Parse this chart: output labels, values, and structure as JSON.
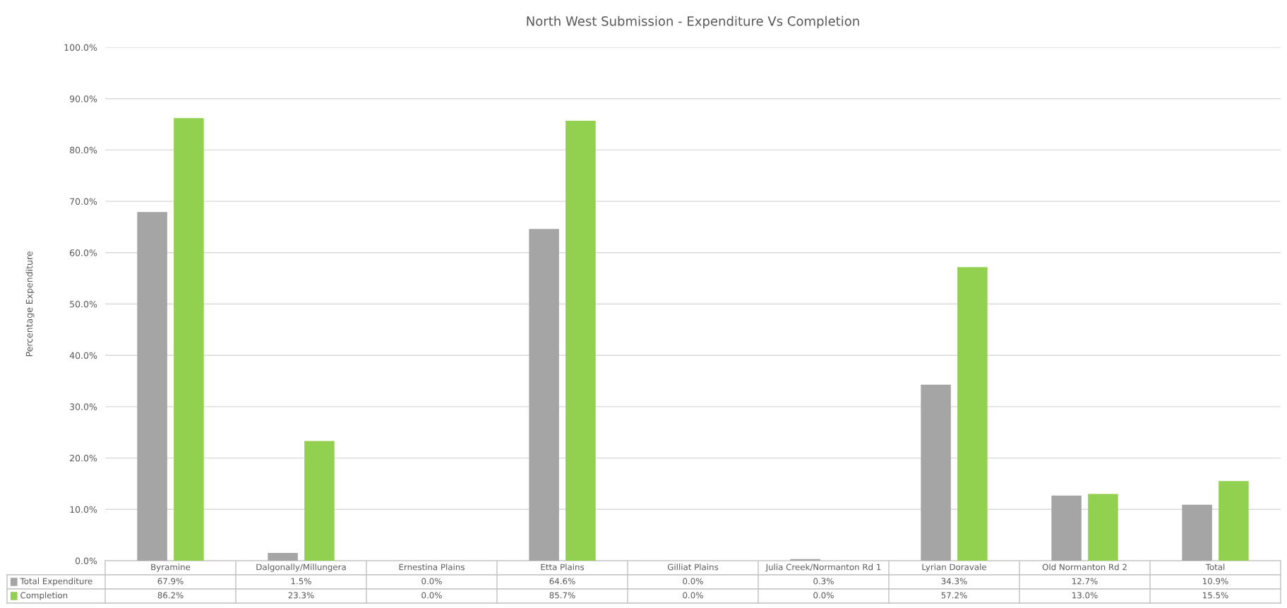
{
  "chart_data": {
    "type": "bar",
    "title": "North West Submission - Expenditure Vs Completion",
    "ylabel": "Percentage Expenditure",
    "categories": [
      "Byramine",
      "Dalgonally/Millungera",
      "Ernestina Plains",
      "Etta Plains",
      "Gilliat Plains",
      "Julia Creek/Normanton Rd 1",
      "Lyrian Doravale",
      "Old Normanton Rd 2",
      "Total"
    ],
    "series": [
      {
        "name": "Total Expenditure",
        "color": "#a5a5a5",
        "values": [
          67.9,
          1.5,
          0.0,
          64.6,
          0.0,
          0.3,
          34.3,
          12.7,
          10.9
        ],
        "value_labels": [
          "67.9%",
          "1.5%",
          "0.0%",
          "64.6%",
          "0.0%",
          "0.3%",
          "34.3%",
          "12.7%",
          "10.9%"
        ]
      },
      {
        "name": "Completion",
        "color": "#92d050",
        "values": [
          86.2,
          23.3,
          0.0,
          85.7,
          0.0,
          0.0,
          57.2,
          13.0,
          15.5
        ],
        "value_labels": [
          "86.2%",
          "23.3%",
          "0.0%",
          "85.7%",
          "0.0%",
          "0.0%",
          "57.2%",
          "13.0%",
          "15.5%"
        ]
      }
    ],
    "ylim": [
      0,
      100
    ],
    "yticks": [
      {
        "value": 0,
        "label": "0.0%"
      },
      {
        "value": 10,
        "label": "10.0%"
      },
      {
        "value": 20,
        "label": "20.0%"
      },
      {
        "value": 30,
        "label": "30.0%"
      },
      {
        "value": 40,
        "label": "40.0%"
      },
      {
        "value": 50,
        "label": "50.0%"
      },
      {
        "value": 60,
        "label": "60.0%"
      },
      {
        "value": 70,
        "label": "70.0%"
      },
      {
        "value": 80,
        "label": "80.0%"
      },
      {
        "value": 90,
        "label": "90.0%"
      },
      {
        "value": 100,
        "label": "100.0%"
      }
    ],
    "grid": "y",
    "legend": "bottom left"
  }
}
